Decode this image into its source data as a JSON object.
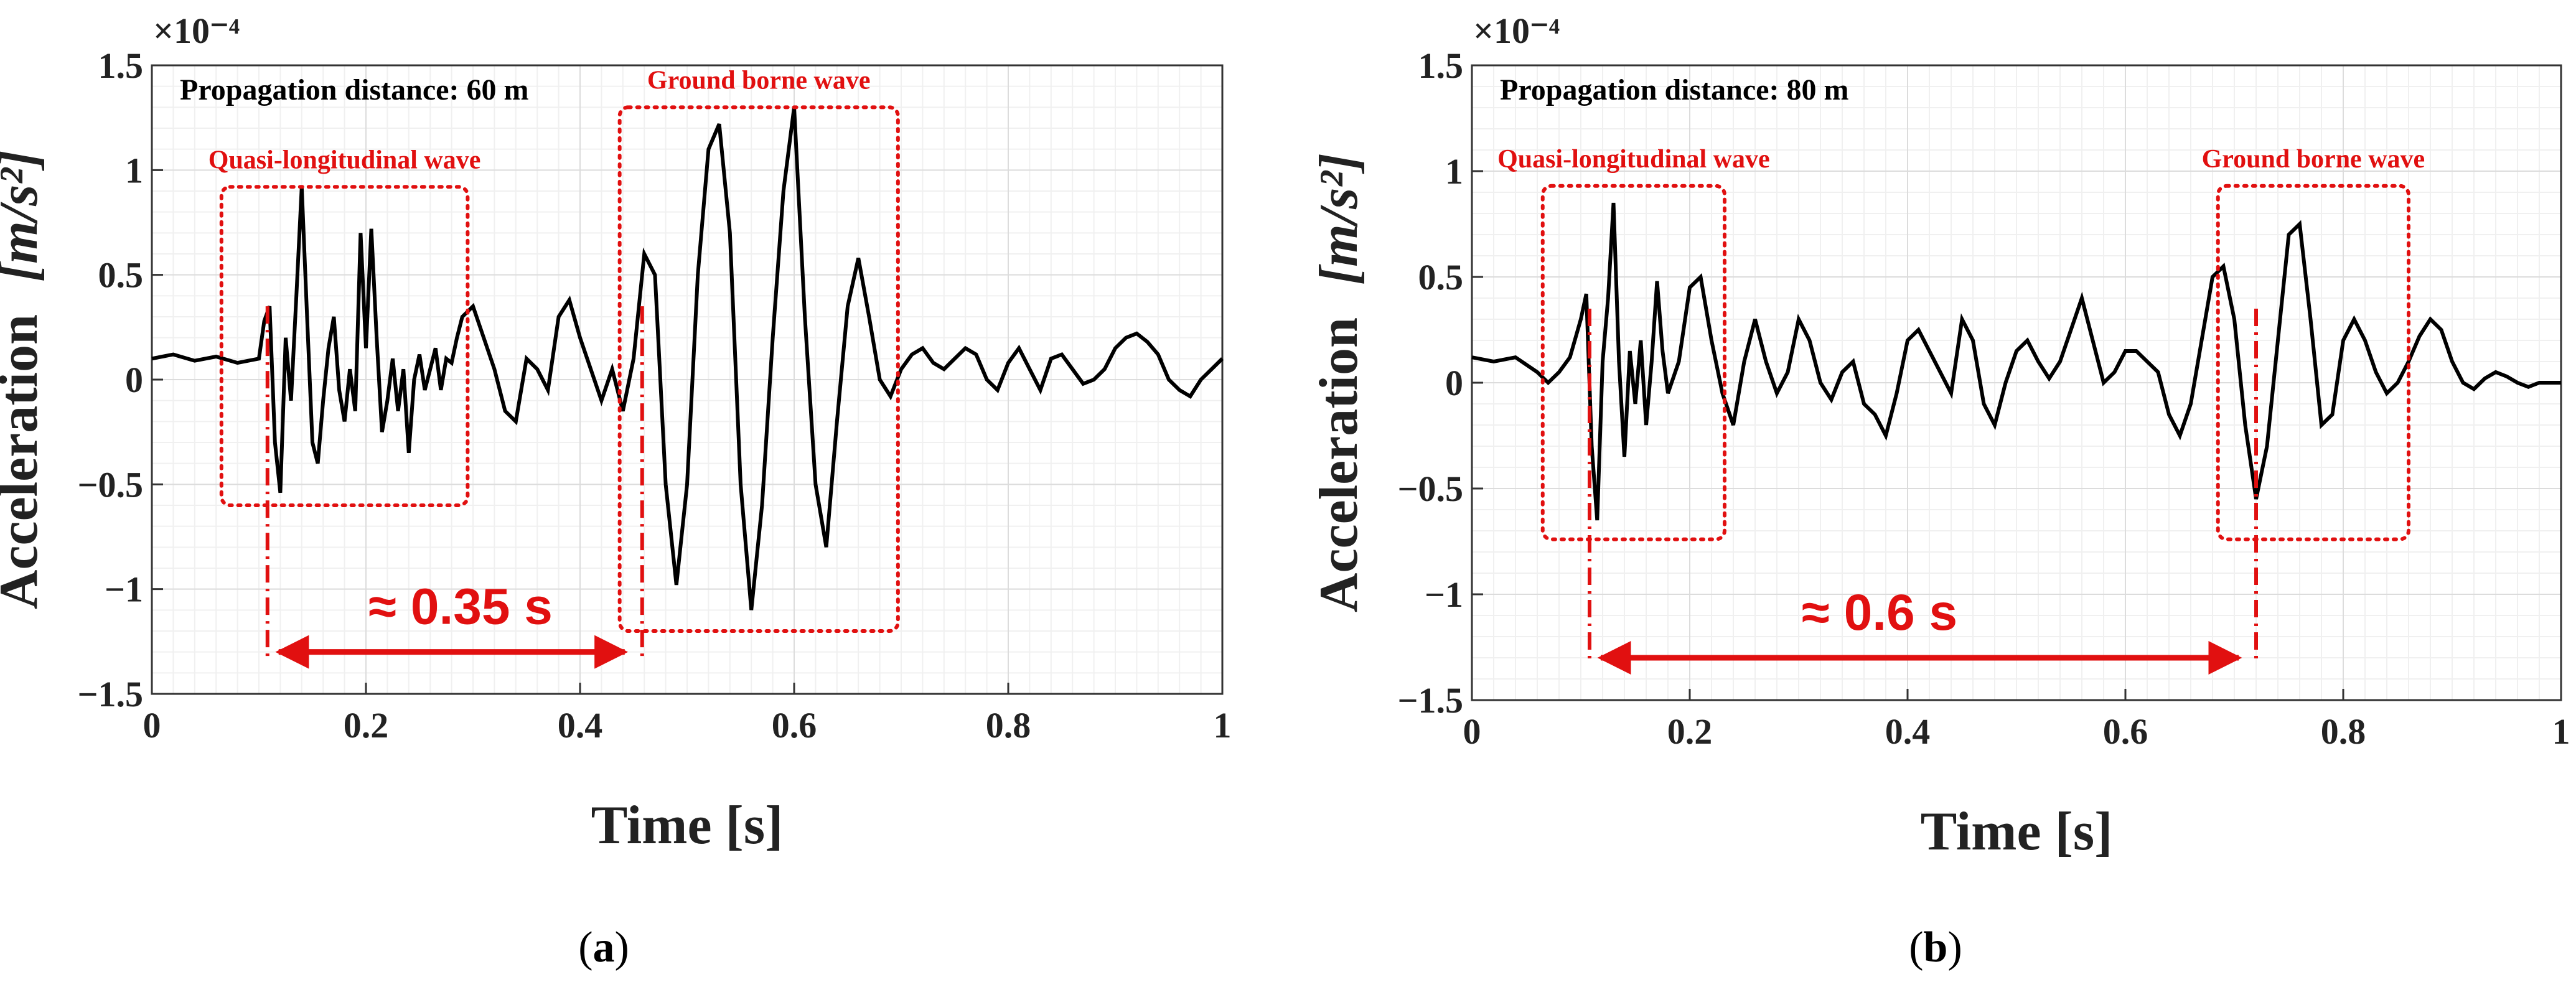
{
  "chart_data": [
    {
      "type": "line",
      "panel_label": "a",
      "xlabel": "Time [s]",
      "ylabel": "Acceleration",
      "ylabel_unit": "[m/s²]",
      "y_scale": "×10⁻⁴",
      "xlim": [
        0,
        1
      ],
      "ylim": [
        -1.5,
        1.5
      ],
      "xticks": [
        "0",
        "0.2",
        "0.4",
        "0.6",
        "0.8",
        "1"
      ],
      "yticks": [
        "−1.5",
        "−1",
        "−0.5",
        "0",
        "0.5",
        "1",
        "1.5"
      ],
      "grid": true,
      "annotation": "Propagation distance: 60 m",
      "regions": [
        {
          "label": "Quasi-longitudinal wave",
          "x0": 0.065,
          "x1": 0.295,
          "y0": -0.6,
          "y1": 0.92
        },
        {
          "label": "Ground borne wave",
          "x0": 0.437,
          "x1": 0.697,
          "y0": -1.2,
          "y1": 1.3
        }
      ],
      "arrival_markers": [
        0.108,
        0.458
      ],
      "duration_label": "≈ 0.35 s",
      "series": [
        {
          "name": "acceleration",
          "x": [
            0,
            0.02,
            0.04,
            0.06,
            0.08,
            0.1,
            0.105,
            0.11,
            0.115,
            0.12,
            0.125,
            0.13,
            0.135,
            0.14,
            0.145,
            0.15,
            0.155,
            0.16,
            0.165,
            0.17,
            0.175,
            0.18,
            0.185,
            0.19,
            0.195,
            0.2,
            0.205,
            0.21,
            0.215,
            0.22,
            0.225,
            0.23,
            0.235,
            0.24,
            0.245,
            0.25,
            0.255,
            0.26,
            0.265,
            0.27,
            0.275,
            0.28,
            0.285,
            0.29,
            0.3,
            0.31,
            0.32,
            0.33,
            0.34,
            0.35,
            0.36,
            0.37,
            0.38,
            0.39,
            0.4,
            0.41,
            0.42,
            0.43,
            0.44,
            0.45,
            0.46,
            0.47,
            0.48,
            0.49,
            0.5,
            0.51,
            0.52,
            0.53,
            0.54,
            0.55,
            0.56,
            0.57,
            0.58,
            0.59,
            0.6,
            0.61,
            0.62,
            0.63,
            0.64,
            0.65,
            0.66,
            0.67,
            0.68,
            0.69,
            0.7,
            0.71,
            0.72,
            0.73,
            0.74,
            0.75,
            0.76,
            0.77,
            0.78,
            0.79,
            0.8,
            0.81,
            0.82,
            0.83,
            0.84,
            0.85,
            0.86,
            0.87,
            0.88,
            0.89,
            0.9,
            0.91,
            0.92,
            0.93,
            0.94,
            0.95,
            0.96,
            0.97,
            0.98,
            0.99,
            1
          ],
          "y": [
            0.1,
            0.12,
            0.09,
            0.11,
            0.08,
            0.1,
            0.28,
            0.35,
            -0.3,
            -0.54,
            0.2,
            -0.1,
            0.4,
            0.92,
            0.3,
            -0.3,
            -0.4,
            -0.1,
            0.15,
            0.3,
            -0.05,
            -0.2,
            0.05,
            -0.15,
            0.7,
            0.15,
            0.72,
            0.2,
            -0.25,
            -0.1,
            0.1,
            -0.15,
            0.05,
            -0.35,
            0.0,
            0.12,
            -0.05,
            0.05,
            0.15,
            -0.05,
            0.1,
            0.08,
            0.2,
            0.3,
            0.35,
            0.2,
            0.05,
            -0.15,
            -0.2,
            0.1,
            0.05,
            -0.05,
            0.3,
            0.38,
            0.2,
            0.05,
            -0.1,
            0.05,
            -0.15,
            0.1,
            0.6,
            0.5,
            -0.5,
            -0.98,
            -0.5,
            0.5,
            1.1,
            1.22,
            0.7,
            -0.5,
            -1.1,
            -0.6,
            0.2,
            0.9,
            1.3,
            0.3,
            -0.5,
            -0.8,
            -0.2,
            0.35,
            0.58,
            0.3,
            0.0,
            -0.08,
            0.05,
            0.12,
            0.15,
            0.08,
            0.05,
            0.1,
            0.15,
            0.12,
            0.0,
            -0.05,
            0.08,
            0.15,
            0.05,
            -0.05,
            0.1,
            0.12,
            0.05,
            -0.02,
            0.0,
            0.05,
            0.15,
            0.2,
            0.22,
            0.18,
            0.12,
            0.0,
            -0.05,
            -0.08,
            0.0,
            0.05,
            0.1
          ]
        }
      ]
    },
    {
      "type": "line",
      "panel_label": "b",
      "xlabel": "Time [s]",
      "ylabel": "Acceleration",
      "ylabel_unit": "[m/s²]",
      "y_scale": "×10⁻⁴",
      "xlim": [
        0,
        1
      ],
      "ylim": [
        -1.5,
        1.5
      ],
      "xticks": [
        "0",
        "0.2",
        "0.4",
        "0.6",
        "0.8",
        "1"
      ],
      "yticks": [
        "−1.5",
        "−1",
        "−0.5",
        "0",
        "0.5",
        "1",
        "1.5"
      ],
      "grid": true,
      "annotation": "Propagation distance: 80 m",
      "regions": [
        {
          "label": "Quasi-longitudinal wave",
          "x0": 0.065,
          "x1": 0.232,
          "y0": -0.74,
          "y1": 0.93
        },
        {
          "label": "Ground borne wave",
          "x0": 0.685,
          "x1": 0.86,
          "y0": -0.74,
          "y1": 0.93
        }
      ],
      "arrival_markers": [
        0.108,
        0.72
      ],
      "duration_label": "≈ 0.6 s",
      "series": [
        {
          "name": "acceleration",
          "x": [
            0,
            0.02,
            0.04,
            0.06,
            0.07,
            0.08,
            0.09,
            0.1,
            0.105,
            0.11,
            0.115,
            0.12,
            0.125,
            0.13,
            0.135,
            0.14,
            0.145,
            0.15,
            0.155,
            0.16,
            0.165,
            0.17,
            0.175,
            0.18,
            0.19,
            0.2,
            0.21,
            0.22,
            0.23,
            0.24,
            0.25,
            0.26,
            0.27,
            0.28,
            0.29,
            0.3,
            0.31,
            0.32,
            0.33,
            0.34,
            0.35,
            0.36,
            0.37,
            0.38,
            0.39,
            0.4,
            0.41,
            0.42,
            0.43,
            0.44,
            0.45,
            0.46,
            0.47,
            0.48,
            0.49,
            0.5,
            0.51,
            0.52,
            0.53,
            0.54,
            0.55,
            0.56,
            0.57,
            0.58,
            0.59,
            0.6,
            0.61,
            0.62,
            0.63,
            0.64,
            0.65,
            0.66,
            0.67,
            0.68,
            0.69,
            0.7,
            0.71,
            0.72,
            0.73,
            0.74,
            0.75,
            0.76,
            0.77,
            0.78,
            0.79,
            0.8,
            0.81,
            0.82,
            0.83,
            0.84,
            0.85,
            0.86,
            0.87,
            0.88,
            0.89,
            0.9,
            0.91,
            0.92,
            0.93,
            0.94,
            0.95,
            0.96,
            0.97,
            0.98,
            0.99,
            1
          ],
          "y": [
            0.12,
            0.1,
            0.12,
            0.05,
            0.0,
            0.05,
            0.12,
            0.3,
            0.42,
            -0.3,
            -0.65,
            0.1,
            0.4,
            0.85,
            0.1,
            -0.35,
            0.15,
            -0.1,
            0.2,
            -0.2,
            0.1,
            0.48,
            0.15,
            -0.05,
            0.1,
            0.45,
            0.5,
            0.2,
            -0.05,
            -0.2,
            0.1,
            0.3,
            0.1,
            -0.05,
            0.05,
            0.3,
            0.2,
            0.0,
            -0.08,
            0.05,
            0.1,
            -0.1,
            -0.15,
            -0.25,
            -0.05,
            0.2,
            0.25,
            0.15,
            0.05,
            -0.05,
            0.3,
            0.2,
            -0.1,
            -0.2,
            0.0,
            0.15,
            0.2,
            0.1,
            0.02,
            0.1,
            0.25,
            0.4,
            0.2,
            0.0,
            0.05,
            0.15,
            0.15,
            0.1,
            0.05,
            -0.15,
            -0.25,
            -0.1,
            0.2,
            0.5,
            0.55,
            0.3,
            -0.2,
            -0.55,
            -0.3,
            0.2,
            0.7,
            0.75,
            0.3,
            -0.2,
            -0.15,
            0.2,
            0.3,
            0.2,
            0.05,
            -0.05,
            0.0,
            0.1,
            0.22,
            0.3,
            0.25,
            0.1,
            0.0,
            -0.03,
            0.02,
            0.05,
            0.03,
            0.0,
            -0.02,
            0.0,
            0.0,
            0.0
          ]
        }
      ]
    }
  ]
}
